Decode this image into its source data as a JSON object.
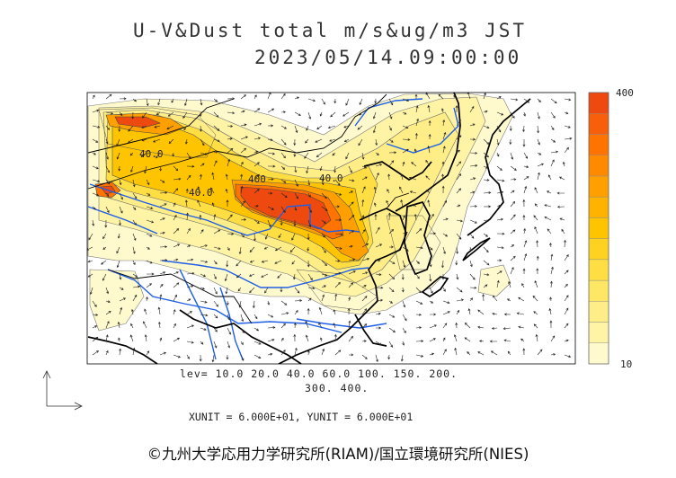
{
  "title": {
    "line1": "U-V&Dust total m/s&ug/m3 JST",
    "line2": "2023/05/14.09:00:00"
  },
  "colorbar": {
    "max_label": "400",
    "min_label": "10",
    "colors": [
      "#fffacd",
      "#fff3a6",
      "#ffee88",
      "#ffe766",
      "#ffde44",
      "#ffd222",
      "#ffc400",
      "#ffb300",
      "#ff9f00",
      "#ff8a00",
      "#ff7400",
      "#f85f0a",
      "#ee4a10"
    ]
  },
  "contour_labels": [
    "40.0",
    "40.0",
    "400",
    "40.0"
  ],
  "levels": {
    "line1": "lev= 10.0 20.0 40.0 60.0 100. 150. 200.",
    "line2": "300. 400."
  },
  "units": {
    "text": "XUNIT = 6.000E+01, YUNIT = 6.000E+01"
  },
  "credit": "©九州大学応用力学研究所(RIAM)/国立環境研究所(NIES)",
  "colors": {
    "coastline": "#000000",
    "rivers": "#1f5fe6",
    "dust_low": "#fffacd",
    "dust_high": "#ee4a10"
  }
}
